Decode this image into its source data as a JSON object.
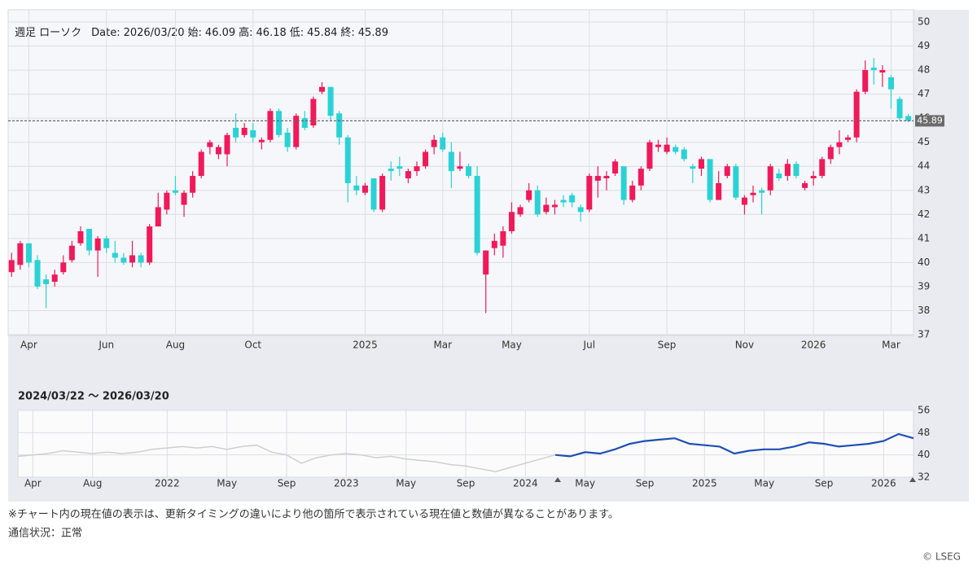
{
  "chart_data": [
    {
      "type": "candlestick",
      "info": {
        "label": "週足 ローソク",
        "date_label": "Date:",
        "date": "2026/03/20",
        "open_label": "始:",
        "high_label": "高:",
        "low_label": "低:",
        "close_label": "終:"
      },
      "categories": [
        null,
        null,
        "Apr",
        null,
        null,
        null,
        null,
        null,
        null,
        null,
        null,
        "Jun",
        null,
        null,
        null,
        null,
        null,
        null,
        null,
        "Aug",
        null,
        null,
        null,
        null,
        null,
        null,
        null,
        null,
        "Oct",
        null,
        null,
        null,
        null,
        null,
        null,
        null,
        null,
        null,
        null,
        null,
        null,
        "2025",
        null,
        null,
        null,
        null,
        null,
        null,
        null,
        null,
        "Mar",
        null,
        null,
        null,
        null,
        null,
        null,
        null,
        "May",
        null,
        null,
        null,
        null,
        null,
        null,
        null,
        null,
        "Jul",
        null,
        null,
        null,
        null,
        null,
        null,
        null,
        null,
        "Sep",
        null,
        null,
        null,
        null,
        null,
        null,
        null,
        null,
        "Nov",
        null,
        null,
        null,
        null,
        null,
        null,
        null,
        "2026",
        null,
        null,
        null,
        null,
        null,
        null,
        null,
        null,
        "Mar",
        null,
        null
      ],
      "open": [
        39.6,
        39.9,
        40.8,
        40.1,
        39.3,
        39.2,
        39.6,
        40.1,
        40.8,
        41.4,
        40.5,
        41.0,
        40.4,
        40.2,
        40.0,
        40.3,
        40.0,
        41.5,
        42.2,
        43.0,
        42.4,
        42.9,
        43.6,
        44.8,
        44.5,
        44.5,
        45.6,
        45.3,
        45.5,
        45.0,
        45.1,
        46.3,
        45.4,
        44.8,
        46.0,
        45.7,
        47.1,
        47.3,
        46.2,
        45.2,
        43.2,
        42.9,
        43.5,
        42.2,
        43.9,
        44.0,
        43.5,
        43.8,
        44.0,
        44.8,
        45.2,
        44.6,
        43.9,
        44.0,
        43.6,
        39.5,
        40.6,
        40.7,
        41.3,
        42.0,
        42.6,
        43.0,
        42.1,
        42.3,
        42.6,
        42.8,
        42.3,
        42.2,
        43.4,
        43.5,
        43.7,
        44.0,
        42.6,
        43.2,
        43.9,
        44.8,
        44.6,
        44.8,
        44.7,
        44.0,
        43.9,
        44.3,
        42.6,
        43.6,
        44.0,
        42.4,
        42.8,
        43.0,
        43.0,
        43.7,
        43.6,
        44.1,
        43.1,
        43.5,
        43.6,
        44.3,
        44.8,
        45.1,
        45.2,
        47.1,
        48.1,
        47.9,
        47.7,
        46.8,
        46.09
      ],
      "high": [
        40.4,
        40.9,
        40.8,
        40.3,
        39.5,
        39.7,
        40.3,
        40.9,
        41.5,
        41.4,
        41.1,
        41.1,
        40.9,
        40.4,
        40.9,
        40.4,
        41.6,
        42.9,
        43.0,
        43.6,
        43.0,
        43.8,
        44.7,
        45.1,
        44.9,
        45.4,
        46.2,
        45.8,
        45.8,
        45.2,
        46.4,
        46.4,
        45.6,
        46.2,
        46.3,
        46.9,
        47.5,
        47.3,
        46.3,
        45.3,
        43.6,
        43.3,
        43.5,
        43.7,
        44.2,
        44.4,
        43.9,
        44.2,
        44.7,
        45.3,
        45.4,
        45.0,
        44.6,
        44.1,
        44.0,
        40.5,
        41.2,
        41.5,
        42.5,
        42.4,
        43.3,
        43.2,
        42.7,
        42.6,
        42.8,
        42.9,
        42.4,
        43.7,
        44.0,
        43.8,
        44.3,
        44.0,
        43.4,
        44.0,
        45.1,
        45.1,
        45.2,
        44.9,
        44.8,
        44.1,
        44.4,
        44.3,
        43.8,
        44.1,
        44.1,
        42.8,
        43.2,
        43.1,
        44.1,
        43.9,
        44.3,
        44.2,
        43.4,
        43.8,
        44.4,
        44.9,
        45.5,
        45.3,
        47.2,
        48.4,
        48.5,
        48.2,
        47.8,
        46.9,
        46.18
      ],
      "low": [
        39.4,
        39.7,
        39.8,
        38.9,
        38.1,
        39.0,
        39.5,
        40.0,
        40.7,
        40.3,
        39.4,
        40.4,
        40.0,
        39.9,
        39.8,
        39.8,
        39.9,
        41.5,
        42.0,
        42.8,
        41.9,
        42.7,
        43.5,
        44.5,
        44.3,
        44.0,
        45.0,
        45.2,
        45.0,
        44.7,
        45.0,
        45.2,
        44.6,
        44.7,
        45.5,
        45.6,
        47.0,
        45.9,
        44.9,
        42.5,
        42.8,
        42.8,
        42.1,
        42.1,
        43.4,
        43.6,
        43.3,
        43.6,
        43.9,
        44.5,
        44.6,
        43.1,
        43.8,
        43.5,
        40.3,
        37.9,
        40.3,
        40.2,
        41.2,
        41.9,
        42.5,
        41.9,
        42.0,
        42.0,
        42.3,
        42.3,
        41.7,
        42.1,
        42.7,
        43.0,
        43.6,
        42.4,
        42.5,
        43.0,
        43.8,
        44.6,
        44.5,
        44.5,
        44.2,
        43.3,
        43.6,
        42.5,
        42.6,
        43.5,
        42.6,
        42.0,
        42.5,
        42.0,
        42.8,
        43.4,
        43.4,
        43.5,
        43.0,
        43.2,
        43.5,
        44.1,
        44.5,
        45.0,
        45.0,
        47.0,
        47.4,
        47.3,
        46.4,
        45.9,
        45.84
      ],
      "close": [
        40.1,
        40.8,
        40.0,
        39.0,
        39.1,
        39.5,
        40.0,
        40.7,
        41.3,
        40.5,
        41.0,
        40.6,
        40.2,
        40.0,
        40.3,
        40.0,
        41.5,
        42.3,
        42.9,
        42.9,
        42.9,
        43.6,
        44.6,
        45.0,
        44.8,
        45.3,
        45.2,
        45.6,
        45.2,
        45.1,
        46.3,
        45.3,
        44.8,
        46.1,
        45.6,
        46.8,
        47.3,
        46.1,
        45.2,
        43.3,
        43.0,
        43.2,
        42.2,
        43.6,
        43.8,
        43.9,
        43.8,
        44.0,
        44.6,
        45.1,
        44.7,
        43.8,
        44.0,
        43.6,
        40.4,
        40.5,
        40.9,
        41.3,
        42.1,
        42.3,
        43.0,
        42.0,
        42.4,
        42.4,
        42.5,
        42.5,
        42.1,
        43.6,
        43.6,
        43.6,
        44.2,
        42.6,
        43.2,
        43.9,
        45.0,
        44.9,
        44.9,
        44.6,
        44.3,
        43.9,
        44.3,
        42.6,
        43.3,
        44.0,
        42.7,
        42.7,
        42.9,
        42.9,
        44.0,
        43.5,
        44.1,
        43.6,
        43.3,
        43.6,
        44.3,
        44.8,
        45.0,
        45.2,
        47.1,
        48.0,
        48.0,
        48.0,
        47.2,
        46.0,
        45.89
      ],
      "up_color": "#f0195a",
      "down_color": "#2ad2d6",
      "ylim": [
        37,
        50
      ],
      "yticks": [
        37,
        38,
        39,
        40,
        41,
        42,
        43,
        44,
        45,
        46,
        47,
        48,
        49,
        50
      ],
      "grid": true
    },
    {
      "type": "line",
      "title": "2024/03/22 〜 2026/03/20",
      "categories": [
        null,
        "Apr",
        null,
        null,
        null,
        "Aug",
        null,
        null,
        null,
        null,
        "2022",
        null,
        null,
        null,
        "May",
        null,
        null,
        null,
        "Sep",
        null,
        null,
        null,
        "2023",
        null,
        null,
        null,
        "May",
        null,
        null,
        null,
        "Sep",
        null,
        null,
        null,
        "2024",
        null,
        null,
        null,
        "May",
        null,
        null,
        null,
        "Sep",
        null,
        null,
        null,
        "2025",
        null,
        null,
        null,
        "May",
        null,
        null,
        null,
        "Sep",
        null,
        null,
        null,
        "2026",
        null,
        null
      ],
      "series": [
        {
          "color": "#cfcfcf",
          "values": [
            39.5,
            40,
            40.5,
            41.5,
            41,
            40.5,
            41,
            40.5,
            41,
            42,
            42.5,
            43,
            42.5,
            43,
            42,
            43,
            43.5,
            41,
            40,
            37,
            39,
            40,
            40.5,
            40,
            39,
            39.5,
            38.5,
            38,
            37.5,
            36.5,
            36,
            35,
            34,
            35.5,
            37,
            38.5,
            40,
            null,
            null,
            null,
            null,
            null,
            null,
            null,
            null,
            null,
            null,
            null,
            null,
            null,
            null,
            null,
            null,
            null,
            null,
            null,
            null,
            null,
            null,
            null,
            null
          ]
        },
        {
          "color": "#1f4fb4",
          "values": [
            null,
            null,
            null,
            null,
            null,
            null,
            null,
            null,
            null,
            null,
            null,
            null,
            null,
            null,
            null,
            null,
            null,
            null,
            null,
            null,
            null,
            null,
            null,
            null,
            null,
            null,
            null,
            null,
            null,
            null,
            null,
            null,
            null,
            null,
            null,
            null,
            40,
            39.5,
            41,
            40.5,
            42,
            44,
            45,
            45.5,
            46,
            44,
            43.5,
            43,
            40.5,
            41.5,
            42,
            42,
            43,
            44.5,
            44,
            43,
            43.5,
            44,
            45,
            47.5,
            46
          ]
        }
      ],
      "ylim": [
        32,
        56
      ],
      "yticks": [
        32,
        40,
        48,
        56
      ],
      "grid": true
    }
  ],
  "footer": {
    "note": "※チャート内の現在値の表示は、更新タイミングの違いにより他の箇所で表示されている現在値と数値が異なることがあります。",
    "status": "通信状況：正常",
    "copyright": "© LSEG"
  }
}
